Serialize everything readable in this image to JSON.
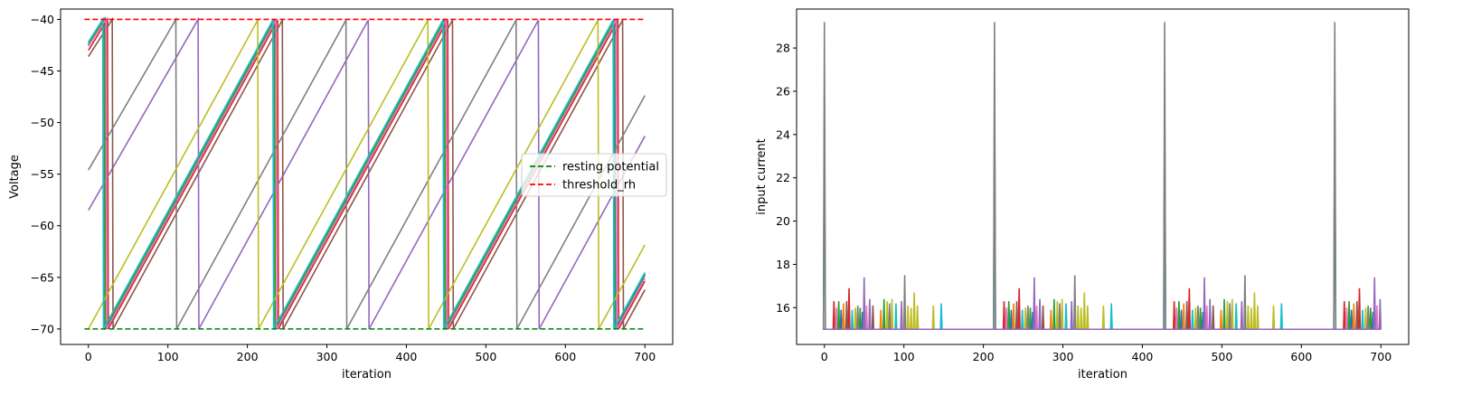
{
  "chart_data": [
    {
      "type": "line",
      "xlabel": "iteration",
      "ylabel": "Voltage",
      "xlim": [
        -35,
        735
      ],
      "ylim": [
        -71.5,
        -39.0
      ],
      "xticks": [
        0,
        100,
        200,
        300,
        400,
        500,
        600,
        700
      ],
      "xtick_labels": [
        "0",
        "100",
        "200",
        "300",
        "400",
        "500",
        "600",
        "700"
      ],
      "yticks": [
        -70,
        -65,
        -60,
        -55,
        -50,
        -45,
        -40
      ],
      "ytick_labels": [
        "−70",
        "−65",
        "−60",
        "−55",
        "−50",
        "−45",
        "−40"
      ],
      "grid": false,
      "legend_position": "center-right",
      "legend": [
        {
          "name": "resting potential",
          "color": "#008000",
          "style": "dashed"
        },
        {
          "name": "threshold_rh",
          "color": "#ff0000",
          "style": "dashed"
        }
      ],
      "reference_lines": [
        {
          "name": "resting potential",
          "y": -70,
          "x": [
            -5,
            700
          ],
          "color": "#008000"
        },
        {
          "name": "threshold_rh",
          "y": -40,
          "x": [
            -5,
            700
          ],
          "color": "#ff0000"
        }
      ],
      "series": [
        {
          "color": "#1f77b4",
          "v0": -42.5,
          "spikes": [
            21,
            234,
            448,
            662
          ],
          "slope": 0.1405
        },
        {
          "color": "#ff7f0e",
          "v0": -42.3,
          "spikes": [
            19,
            233,
            447,
            661
          ],
          "slope": 0.1405
        },
        {
          "color": "#2ca02c",
          "v0": -42.4,
          "spikes": [
            20,
            234,
            448,
            661
          ],
          "slope": 0.1405
        },
        {
          "color": "#d62728",
          "v0": -43.0,
          "spikes": [
            24,
            238,
            452,
            666
          ],
          "slope": 0.1405
        },
        {
          "color": "#9467bd",
          "v0": -58.5,
          "spikes": [
            138,
            352,
            566
          ],
          "slope": 0.1405
        },
        {
          "color": "#8c564b",
          "v0": -43.6,
          "spikes": [
            30,
            244,
            458,
            672
          ],
          "slope": 0.1405
        },
        {
          "color": "#e377c2",
          "v0": -42.6,
          "spikes": [
            22,
            236,
            450,
            664
          ],
          "slope": 0.1405
        },
        {
          "color": "#7f7f7f",
          "v0": -54.6,
          "spikes": [
            110,
            324,
            538
          ],
          "slope": 0.1405
        },
        {
          "color": "#bcbd22",
          "v0": -70.0,
          "spikes": [
            213,
            427,
            641
          ],
          "slope": 0.1405
        },
        {
          "color": "#17becf",
          "v0": -42.2,
          "spikes": [
            18,
            232,
            446,
            660
          ],
          "slope": 0.1405
        }
      ]
    },
    {
      "type": "line",
      "xlabel": "iteration",
      "ylabel": "input current",
      "xlim": [
        -35,
        735
      ],
      "ylim": [
        14.3,
        29.8
      ],
      "xticks": [
        0,
        100,
        200,
        300,
        400,
        500,
        600,
        700
      ],
      "xtick_labels": [
        "0",
        "100",
        "200",
        "300",
        "400",
        "500",
        "600",
        "700"
      ],
      "yticks": [
        16,
        18,
        20,
        22,
        24,
        26,
        28
      ],
      "ytick_labels": [
        "16",
        "18",
        "20",
        "22",
        "24",
        "26",
        "28"
      ],
      "grid": false,
      "baseline": 15.0,
      "large_spikes": [
        {
          "x": 0,
          "y": 29.2,
          "color": "#7f7f7f"
        },
        {
          "x": 0,
          "y": 25.8,
          "color": "#17becf"
        },
        {
          "x": 214,
          "y": 29.2,
          "color": "#7f7f7f"
        },
        {
          "x": 214,
          "y": 25.8,
          "color": "#17becf"
        },
        {
          "x": 428,
          "y": 29.2,
          "color": "#7f7f7f"
        },
        {
          "x": 428,
          "y": 25.8,
          "color": "#17becf"
        },
        {
          "x": 642,
          "y": 29.2,
          "color": "#7f7f7f"
        },
        {
          "x": 642,
          "y": 25.8,
          "color": "#17becf"
        }
      ],
      "small_spikes": [
        {
          "x": 12,
          "y": 16.3,
          "color": "#d62728"
        },
        {
          "x": 15,
          "y": 16.0,
          "color": "#e377c2"
        },
        {
          "x": 18,
          "y": 16.3,
          "color": "#2ca02c"
        },
        {
          "x": 21,
          "y": 15.9,
          "color": "#1f77b4"
        },
        {
          "x": 24,
          "y": 16.2,
          "color": "#ff7f0e"
        },
        {
          "x": 28,
          "y": 16.3,
          "color": "#8c564b"
        },
        {
          "x": 31,
          "y": 16.9,
          "color": "#d62728"
        },
        {
          "x": 35,
          "y": 15.9,
          "color": "#17becf"
        },
        {
          "x": 39,
          "y": 16.0,
          "color": "#bcbd22"
        },
        {
          "x": 42,
          "y": 16.1,
          "color": "#7f7f7f"
        },
        {
          "x": 45,
          "y": 16.0,
          "color": "#2ca02c"
        },
        {
          "x": 48,
          "y": 15.8,
          "color": "#1f77b4"
        },
        {
          "x": 50,
          "y": 17.4,
          "color": "#9467bd"
        },
        {
          "x": 53,
          "y": 16.1,
          "color": "#e377c2"
        },
        {
          "x": 57,
          "y": 16.4,
          "color": "#9467bd"
        },
        {
          "x": 61,
          "y": 16.1,
          "color": "#8c564b"
        },
        {
          "x": 71,
          "y": 15.9,
          "color": "#ff7f0e"
        },
        {
          "x": 75,
          "y": 16.4,
          "color": "#2ca02c"
        },
        {
          "x": 79,
          "y": 16.3,
          "color": "#bcbd22"
        },
        {
          "x": 82,
          "y": 16.2,
          "color": "#7f7f7f"
        },
        {
          "x": 85,
          "y": 16.4,
          "color": "#bcbd22"
        },
        {
          "x": 90,
          "y": 16.2,
          "color": "#17becf"
        },
        {
          "x": 97,
          "y": 16.3,
          "color": "#9467bd"
        },
        {
          "x": 101,
          "y": 17.5,
          "color": "#7f7f7f"
        },
        {
          "x": 105,
          "y": 16.1,
          "color": "#bcbd22"
        },
        {
          "x": 109,
          "y": 16.0,
          "color": "#bcbd22"
        },
        {
          "x": 113,
          "y": 16.7,
          "color": "#bcbd22"
        },
        {
          "x": 117,
          "y": 16.1,
          "color": "#bcbd22"
        },
        {
          "x": 137,
          "y": 16.1,
          "color": "#bcbd22"
        },
        {
          "x": 147,
          "y": 16.2,
          "color": "#17becf"
        }
      ]
    }
  ]
}
